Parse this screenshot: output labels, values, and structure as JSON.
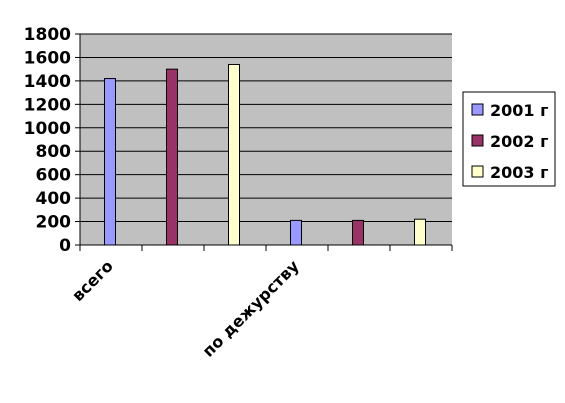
{
  "chart_data": {
    "type": "bar",
    "categories": [
      "всего",
      "по дежурству"
    ],
    "series": [
      {
        "name": "2001 г",
        "values": [
          1420,
          210
        ],
        "color": "#9999ff"
      },
      {
        "name": "2002 г",
        "values": [
          1500,
          210
        ],
        "color": "#993366"
      },
      {
        "name": "2003 г",
        "values": [
          1540,
          220
        ],
        "color": "#ffffcc"
      }
    ],
    "yticks": [
      "0",
      "200",
      "400",
      "600",
      "800",
      "1000",
      "1200",
      "1400",
      "1600",
      "1800"
    ],
    "ylim": [
      0,
      1800
    ],
    "grid": true,
    "plot_background": "#c0c0c0",
    "legend_position": "right"
  }
}
